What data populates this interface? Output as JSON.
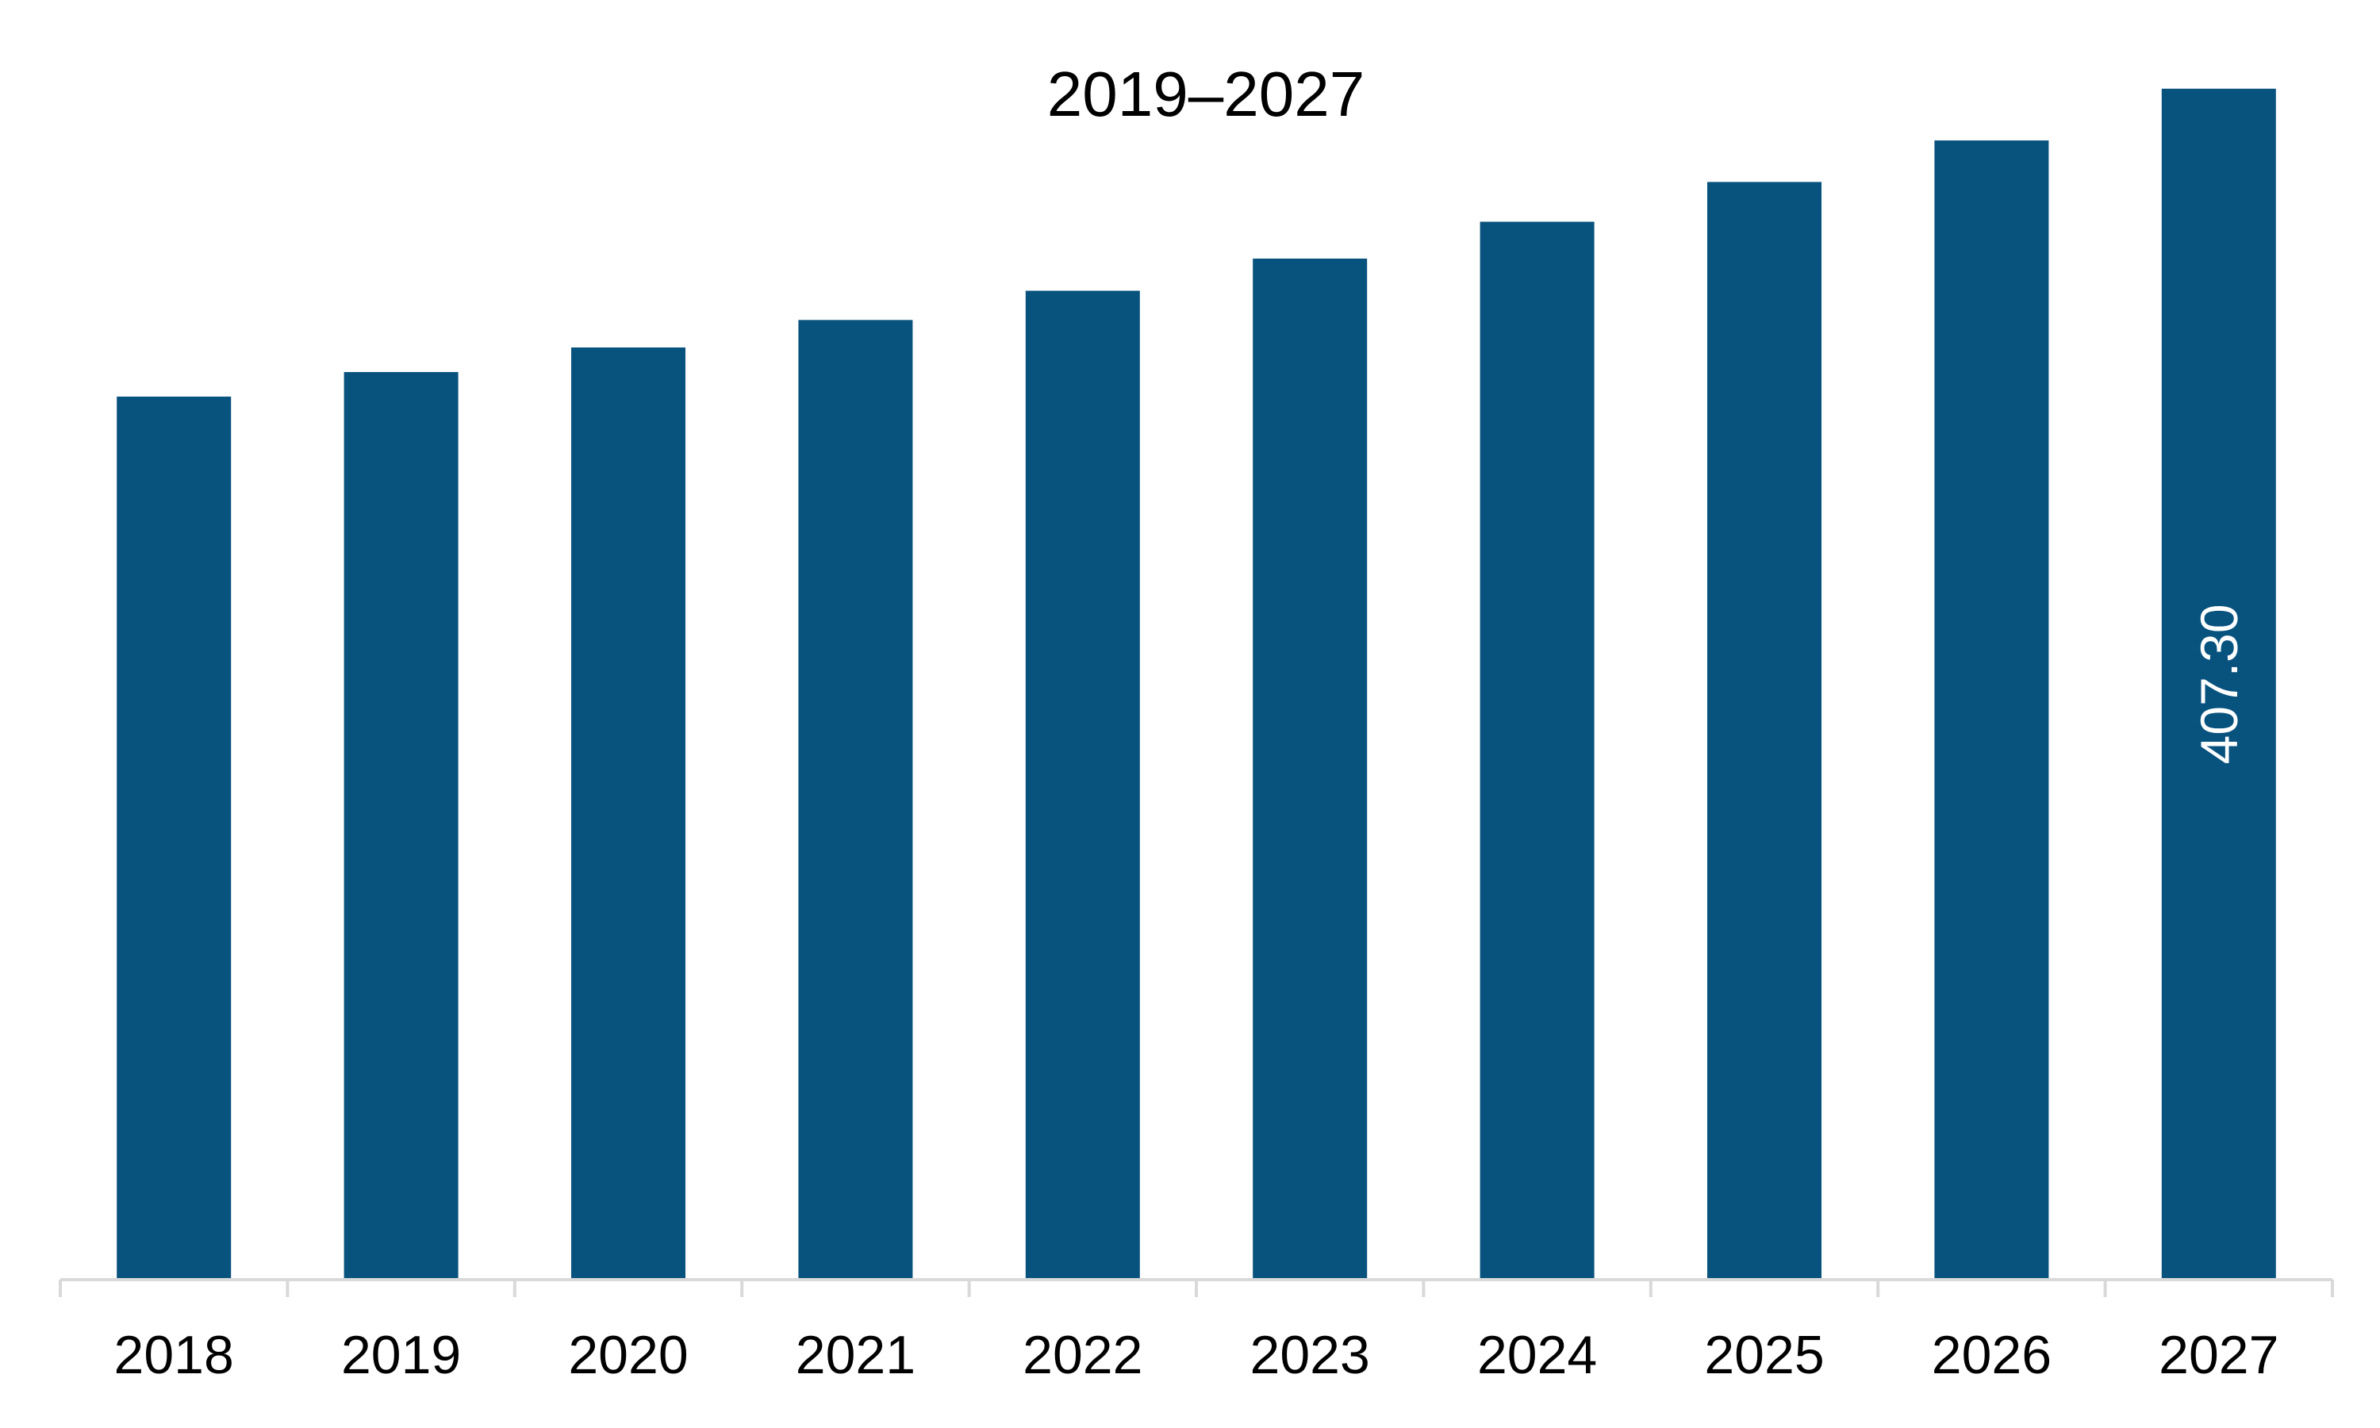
{
  "chart_data": {
    "type": "bar",
    "title": "2019–2027",
    "xlabel": "",
    "ylabel": "",
    "categories": [
      "2018",
      "2019",
      "2020",
      "2021",
      "2022",
      "2023",
      "2024",
      "2025",
      "2026",
      "2027"
    ],
    "series": [
      {
        "values": [
          302.0,
          310.4,
          318.8,
          328.2,
          338.2,
          349.2,
          361.8,
          375.4,
          389.6,
          407.3
        ],
        "color": "#08527E",
        "data_labels": [
          "",
          "",
          "",
          "",
          "",
          "",
          "",
          "",
          "",
          "407.30"
        ]
      }
    ],
    "ylim": [
      0,
      420
    ],
    "grid": false,
    "legend": "none",
    "axis_color": "#D9D9D9"
  }
}
